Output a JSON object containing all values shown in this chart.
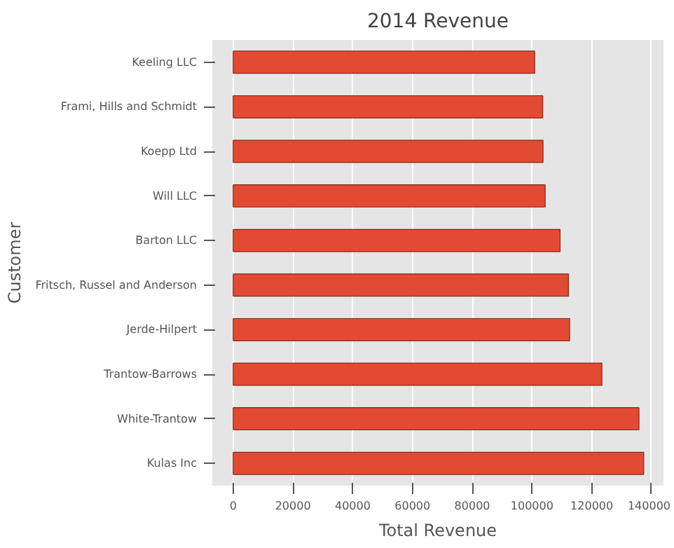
{
  "chart_data": {
    "type": "bar",
    "orientation": "horizontal",
    "title": "2014 Revenue",
    "xlabel": "Total Revenue",
    "ylabel": "Customer",
    "categories": [
      "Keeling LLC",
      "Frami, Hills and Schmidt",
      "Koepp Ltd",
      "Will LLC",
      "Barton LLC",
      "Fritsch, Russel and Anderson",
      "Jerde-Hilpert",
      "Trantow-Barrows",
      "White-Trantow",
      "Kulas Inc"
    ],
    "values": [
      100900,
      103600,
      103700,
      104400,
      109400,
      112200,
      112600,
      123400,
      135800,
      137400
    ],
    "color": "#e24a33",
    "xlim": [
      -7000,
      144000
    ],
    "xticks": [
      0,
      20000,
      40000,
      60000,
      80000,
      100000,
      120000,
      140000
    ],
    "grid": "x"
  }
}
